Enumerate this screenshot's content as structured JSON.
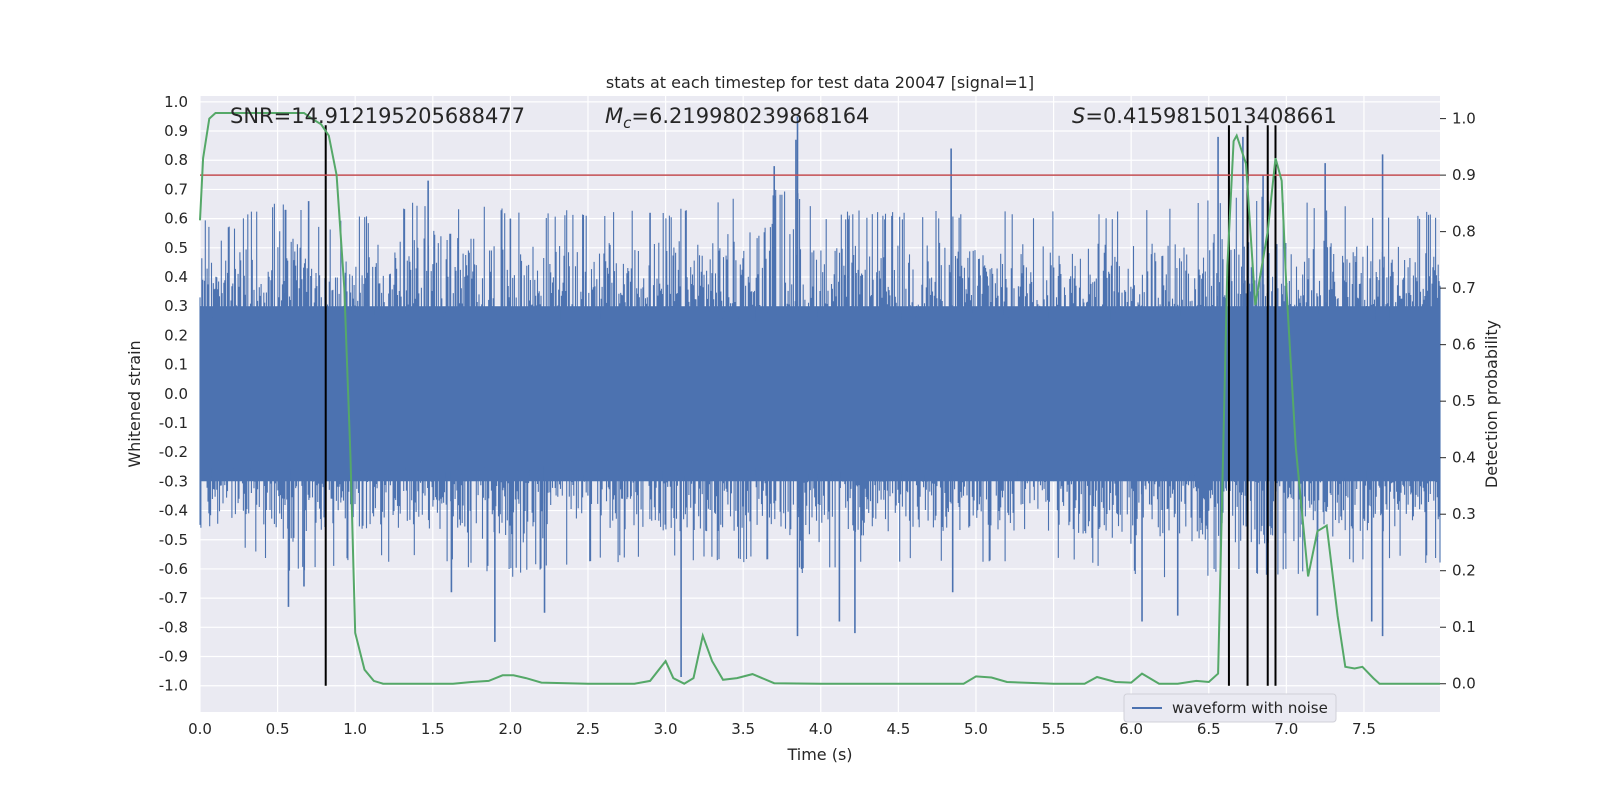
{
  "chart_data": {
    "type": "line",
    "title": "stats at each timestep for test data 20047 [signal=1]",
    "xlabel": "Time (s)",
    "ylabel_left": "Whitened strain",
    "ylabel_right": "Detection probability",
    "xlim": [
      0.0,
      7.99
    ],
    "ylim_left": [
      -1.09,
      1.02
    ],
    "ylim_right": [
      -0.05,
      1.04
    ],
    "x_ticks": [
      "0.0",
      "0.5",
      "1.0",
      "1.5",
      "2.0",
      "2.5",
      "3.0",
      "3.5",
      "4.0",
      "4.5",
      "5.0",
      "5.5",
      "6.0",
      "6.5",
      "7.0",
      "7.5"
    ],
    "y_ticks_left": [
      "1.0",
      "0.9",
      "0.8",
      "0.7",
      "0.6",
      "0.5",
      "0.4",
      "0.3",
      "0.2",
      "0.1",
      "0.0",
      "-0.1",
      "-0.2",
      "-0.3",
      "-0.4",
      "-0.5",
      "-0.6",
      "-0.7",
      "-0.8",
      "-0.9",
      "-1.0"
    ],
    "y_ticks_right": [
      "1.0",
      "0.9",
      "0.8",
      "0.7",
      "0.6",
      "0.5",
      "0.4",
      "0.3",
      "0.2",
      "0.1",
      "0.0"
    ],
    "annotations": {
      "snr": "SNR=14.912195205688477",
      "mc_symbol": "M",
      "mc_sub": "c",
      "mc_value": "=6.219980239868164",
      "s_symbol": "S",
      "s_value": "=0.4159815013408661"
    },
    "legend": {
      "label": "waveform with noise",
      "placement": "lower-right"
    },
    "colors": {
      "waveform": "#4c72b0",
      "probability": "#55a868",
      "threshold": "#c44e52",
      "markers": "#000000",
      "background": "#eaeaf2",
      "grid": "#ffffff"
    },
    "waveform": {
      "name": "waveform with noise",
      "envelope_hi": [
        [
          0.0,
          0.55
        ],
        [
          0.1,
          0.45
        ],
        [
          0.3,
          0.55
        ],
        [
          0.5,
          0.6
        ],
        [
          0.8,
          0.5
        ],
        [
          1.2,
          0.55
        ],
        [
          1.5,
          0.6
        ],
        [
          2.0,
          0.55
        ],
        [
          2.5,
          0.55
        ],
        [
          3.0,
          0.55
        ],
        [
          3.5,
          0.6
        ],
        [
          3.8,
          0.65
        ],
        [
          4.0,
          0.55
        ],
        [
          4.5,
          0.55
        ],
        [
          5.0,
          0.55
        ],
        [
          5.5,
          0.55
        ],
        [
          6.0,
          0.55
        ],
        [
          6.5,
          0.6
        ],
        [
          7.0,
          0.6
        ],
        [
          7.5,
          0.55
        ],
        [
          7.99,
          0.55
        ]
      ],
      "envelope_lo": [
        [
          0.0,
          -0.5
        ],
        [
          0.3,
          -0.45
        ],
        [
          0.6,
          -0.55
        ],
        [
          1.0,
          -0.5
        ],
        [
          1.5,
          -0.5
        ],
        [
          2.0,
          -0.55
        ],
        [
          2.5,
          -0.5
        ],
        [
          3.0,
          -0.5
        ],
        [
          3.5,
          -0.5
        ],
        [
          4.0,
          -0.55
        ],
        [
          4.5,
          -0.5
        ],
        [
          5.0,
          -0.5
        ],
        [
          5.5,
          -0.5
        ],
        [
          6.0,
          -0.55
        ],
        [
          6.5,
          -0.55
        ],
        [
          7.0,
          -0.55
        ],
        [
          7.5,
          -0.5
        ],
        [
          7.99,
          -0.5
        ]
      ],
      "peaks_up": [
        [
          0.55,
          0.63
        ],
        [
          0.7,
          0.66
        ],
        [
          1.47,
          0.73
        ],
        [
          3.7,
          0.78
        ],
        [
          3.84,
          0.87
        ],
        [
          3.85,
          0.95
        ],
        [
          4.84,
          0.84
        ],
        [
          6.56,
          0.88
        ],
        [
          6.72,
          0.88
        ],
        [
          7.25,
          0.79
        ],
        [
          7.62,
          0.82
        ],
        [
          6.85,
          0.75
        ],
        [
          2.0,
          0.6
        ],
        [
          2.9,
          0.62
        ]
      ],
      "peaks_down": [
        [
          0.57,
          -0.73
        ],
        [
          0.67,
          -0.66
        ],
        [
          1.62,
          -0.68
        ],
        [
          1.9,
          -0.85
        ],
        [
          2.22,
          -0.75
        ],
        [
          3.1,
          -0.97
        ],
        [
          3.85,
          -0.83
        ],
        [
          4.12,
          -0.78
        ],
        [
          4.22,
          -0.82
        ],
        [
          4.85,
          -0.68
        ],
        [
          6.07,
          -0.78
        ],
        [
          6.3,
          -0.76
        ],
        [
          7.2,
          -0.76
        ],
        [
          7.55,
          -0.78
        ],
        [
          7.62,
          -0.83
        ]
      ]
    },
    "probability": {
      "name": "Detection probability",
      "points": [
        [
          0.0,
          0.82
        ],
        [
          0.02,
          0.93
        ],
        [
          0.06,
          1.0
        ],
        [
          0.1,
          1.01
        ],
        [
          0.2,
          1.01
        ],
        [
          0.3,
          1.01
        ],
        [
          0.4,
          1.01
        ],
        [
          0.5,
          1.01
        ],
        [
          0.6,
          1.01
        ],
        [
          0.67,
          1.01
        ],
        [
          0.72,
          1.0
        ],
        [
          0.78,
          0.99
        ],
        [
          0.83,
          0.97
        ],
        [
          0.88,
          0.9
        ],
        [
          0.93,
          0.7
        ],
        [
          0.97,
          0.4
        ],
        [
          1.0,
          0.09
        ],
        [
          1.06,
          0.025
        ],
        [
          1.12,
          0.005
        ],
        [
          1.18,
          0.0
        ],
        [
          1.3,
          0.0
        ],
        [
          1.5,
          0.0
        ],
        [
          1.63,
          0.0
        ],
        [
          1.75,
          0.003
        ],
        [
          1.86,
          0.005
        ],
        [
          1.95,
          0.015
        ],
        [
          2.02,
          0.015
        ],
        [
          2.1,
          0.01
        ],
        [
          2.2,
          0.002
        ],
        [
          2.5,
          0.0
        ],
        [
          2.8,
          0.0
        ],
        [
          2.9,
          0.005
        ],
        [
          3.0,
          0.04
        ],
        [
          3.05,
          0.01
        ],
        [
          3.12,
          0.0
        ],
        [
          3.18,
          0.01
        ],
        [
          3.24,
          0.085
        ],
        [
          3.3,
          0.04
        ],
        [
          3.37,
          0.007
        ],
        [
          3.46,
          0.01
        ],
        [
          3.56,
          0.017
        ],
        [
          3.7,
          0.001
        ],
        [
          4.0,
          0.0
        ],
        [
          4.4,
          0.0
        ],
        [
          4.8,
          0.0
        ],
        [
          4.92,
          0.0
        ],
        [
          5.0,
          0.013
        ],
        [
          5.1,
          0.011
        ],
        [
          5.2,
          0.003
        ],
        [
          5.5,
          0.0
        ],
        [
          5.7,
          0.0
        ],
        [
          5.78,
          0.012
        ],
        [
          5.9,
          0.003
        ],
        [
          6.0,
          0.002
        ],
        [
          6.07,
          0.018
        ],
        [
          6.18,
          0.0
        ],
        [
          6.3,
          0.0
        ],
        [
          6.42,
          0.005
        ],
        [
          6.5,
          0.003
        ],
        [
          6.56,
          0.018
        ],
        [
          6.62,
          0.74
        ],
        [
          6.66,
          0.96
        ],
        [
          6.68,
          0.97
        ],
        [
          6.74,
          0.92
        ],
        [
          6.8,
          0.67
        ],
        [
          6.88,
          0.8
        ],
        [
          6.93,
          0.93
        ],
        [
          6.97,
          0.89
        ],
        [
          7.0,
          0.7
        ],
        [
          7.06,
          0.42
        ],
        [
          7.14,
          0.19
        ],
        [
          7.2,
          0.27
        ],
        [
          7.26,
          0.28
        ],
        [
          7.33,
          0.12
        ],
        [
          7.38,
          0.03
        ],
        [
          7.44,
          0.027
        ],
        [
          7.49,
          0.03
        ],
        [
          7.56,
          0.01
        ],
        [
          7.6,
          0.0
        ],
        [
          7.7,
          0.0
        ],
        [
          7.8,
          0.0
        ],
        [
          7.99,
          0.0
        ]
      ]
    },
    "threshold": {
      "value": 0.9
    },
    "markers_x": [
      0.81,
      6.63,
      6.75,
      6.88,
      6.93
    ],
    "markers_ymin": -1.0,
    "markers_ymax": 0.92
  }
}
